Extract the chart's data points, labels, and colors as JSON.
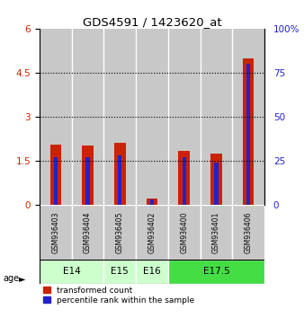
{
  "title": "GDS4591 / 1423620_at",
  "samples": [
    "GSM936403",
    "GSM936404",
    "GSM936405",
    "GSM936402",
    "GSM936400",
    "GSM936401",
    "GSM936406"
  ],
  "transformed_counts": [
    2.05,
    2.02,
    2.12,
    0.22,
    1.82,
    1.75,
    5.0
  ],
  "percentile_rank_values": [
    27,
    27,
    28,
    3,
    27,
    24,
    80
  ],
  "ylim_left": [
    0,
    6
  ],
  "ylim_right": [
    0,
    100
  ],
  "yticks_left": [
    0,
    1.5,
    3,
    4.5,
    6
  ],
  "yticks_left_labels": [
    "0",
    "1.5",
    "3",
    "4.5",
    "6"
  ],
  "yticks_right": [
    0,
    25,
    50,
    75,
    100
  ],
  "yticks_right_labels": [
    "0",
    "25",
    "50",
    "75",
    "100%"
  ],
  "bar_color_red": "#cc2200",
  "bar_color_blue": "#2222cc",
  "grid_color": "#000000",
  "bg_color": "#ffffff",
  "sample_bg_color": "#c8c8c8",
  "age_e14_color": "#ccffcc",
  "age_e16_color": "#ccffcc",
  "age_e175_color": "#44dd44",
  "bar_width": 0.35,
  "blue_bar_width": 0.12,
  "age_configs": [
    [
      0,
      1,
      "E14",
      "#ccffcc"
    ],
    [
      2,
      2,
      "E15",
      "#ccffcc"
    ],
    [
      3,
      3,
      "E16",
      "#ccffcc"
    ],
    [
      4,
      6,
      "E17.5",
      "#44dd44"
    ]
  ]
}
